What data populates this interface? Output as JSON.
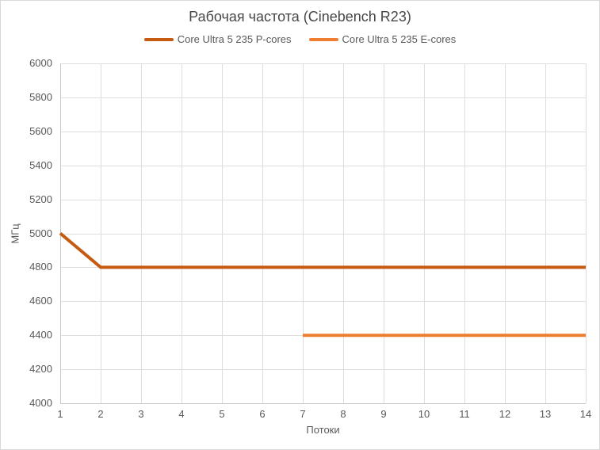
{
  "chart_data": {
    "type": "line",
    "title": "Рабочая частота (Cinebench R23)",
    "xlabel": "Потоки",
    "ylabel": "МГц",
    "x": [
      1,
      2,
      3,
      4,
      5,
      6,
      7,
      8,
      9,
      10,
      11,
      12,
      13,
      14
    ],
    "ylim": [
      4000,
      6000
    ],
    "ystep": 200,
    "grid": true,
    "legend_position": "top",
    "series": [
      {
        "name": "Core Ultra 5 235 P-cores",
        "color": "#C55A11",
        "values": [
          5000,
          4800,
          4800,
          4800,
          4800,
          4800,
          4800,
          4800,
          4800,
          4800,
          4800,
          4800,
          4800,
          4800
        ]
      },
      {
        "name": "Core Ultra 5 235 E-cores",
        "color": "#ED7D31",
        "values": [
          null,
          null,
          null,
          null,
          null,
          null,
          4400,
          4400,
          4400,
          4400,
          4400,
          4400,
          4400,
          4400
        ]
      }
    ]
  },
  "colors": {
    "background": "#FFFFFF",
    "border": "#D9D9D9",
    "gridline": "#DEDEDE",
    "axis_line": "#C8C8C8",
    "text": "#595959",
    "title_text": "#474747"
  }
}
